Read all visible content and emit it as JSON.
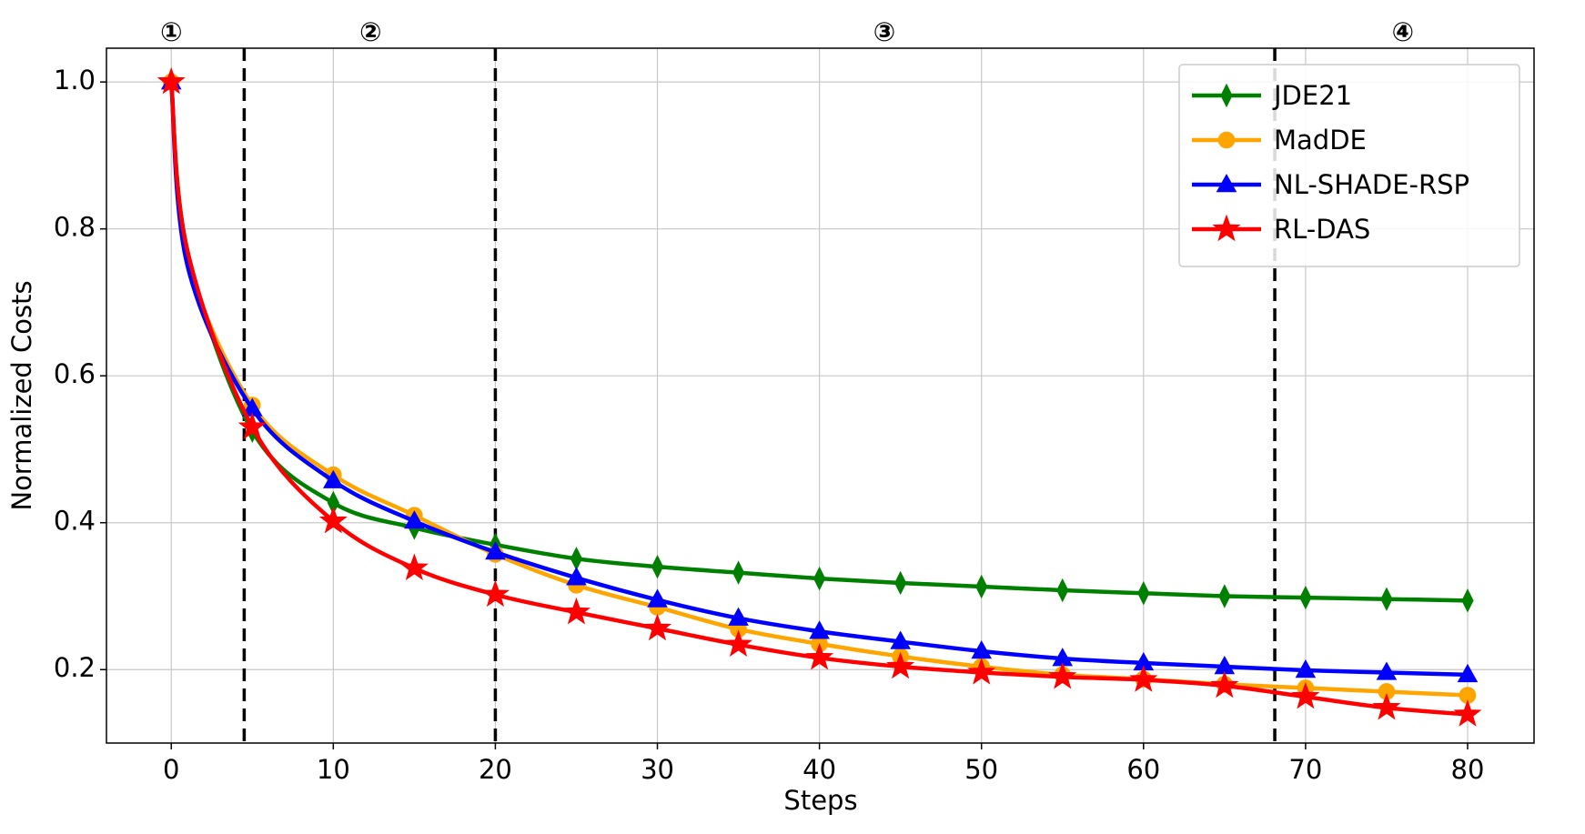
{
  "chart_data": {
    "type": "line",
    "x_label": "Steps",
    "y_label": "Normalized Costs",
    "x": [
      0,
      1,
      5,
      10,
      15,
      20,
      25,
      30,
      35,
      40,
      45,
      50,
      55,
      60,
      65,
      70,
      75,
      80
    ],
    "series": [
      {
        "name": "JDE21",
        "color": "#008000",
        "marker": "diamond",
        "values": [
          1.0,
          0.77,
          0.525,
          0.427,
          0.393,
          0.37,
          0.351,
          0.34,
          0.332,
          0.324,
          0.318,
          0.313,
          0.308,
          0.304,
          0.3,
          0.298,
          0.296,
          0.294
        ]
      },
      {
        "name": "MadDE",
        "color": "#ffa500",
        "marker": "circle",
        "values": [
          1.0,
          0.76,
          0.56,
          0.465,
          0.41,
          0.357,
          0.315,
          0.285,
          0.255,
          0.235,
          0.218,
          0.204,
          0.193,
          0.187,
          0.18,
          0.175,
          0.17,
          0.165
        ]
      },
      {
        "name": "NL-SHADE-RSP",
        "color": "#0000ff",
        "marker": "triangle",
        "values": [
          1.0,
          0.75,
          0.555,
          0.457,
          0.402,
          0.36,
          0.325,
          0.295,
          0.27,
          0.252,
          0.238,
          0.225,
          0.215,
          0.209,
          0.204,
          0.199,
          0.196,
          0.193
        ]
      },
      {
        "name": "RL-DAS",
        "color": "#ff0000",
        "marker": "star",
        "values": [
          1.0,
          0.77,
          0.53,
          0.402,
          0.338,
          0.302,
          0.278,
          0.256,
          0.234,
          0.216,
          0.204,
          0.196,
          0.19,
          0.186,
          0.178,
          0.163,
          0.148,
          0.139
        ]
      }
    ],
    "xlim": [
      -4,
      84.1
    ],
    "ylim": [
      0.1,
      1.046
    ],
    "xticks": [
      0,
      10,
      20,
      30,
      40,
      50,
      60,
      70,
      80
    ],
    "yticks": [
      {
        "value": 0.2,
        "label": "0.2"
      },
      {
        "value": 0.4,
        "label": "0.4"
      },
      {
        "value": 0.6,
        "label": "0.6"
      },
      {
        "value": 0.8,
        "label": "0.8"
      },
      {
        "value": 1.0,
        "label": "1.0"
      }
    ],
    "grid": true,
    "legend_position": "upper right",
    "dividers": [
      4.5,
      20,
      68.1
    ],
    "stage_labels": [
      {
        "label": "①",
        "x": 0
      },
      {
        "label": "②",
        "x": 12.3
      },
      {
        "label": "③",
        "x": 44
      },
      {
        "label": "④",
        "x": 76
      }
    ]
  }
}
